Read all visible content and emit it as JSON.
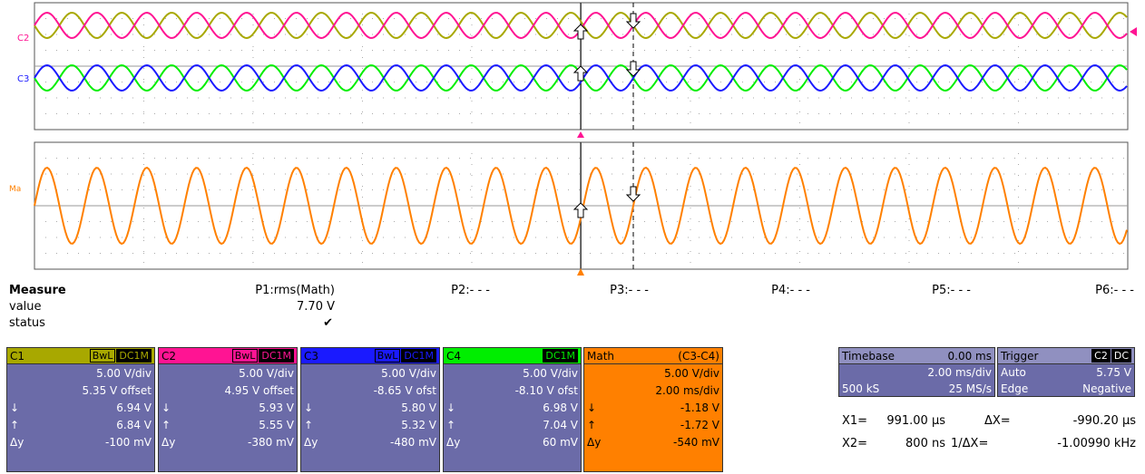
{
  "traces": {
    "upper": [
      "C2",
      "C3"
    ],
    "lower": "Ma"
  },
  "measure": {
    "title": "Measure",
    "row_labels": [
      "value",
      "status"
    ],
    "params": [
      "P1:rms(Math)",
      "P2:- - -",
      "P3:- - -",
      "P4:- - -",
      "P5:- - -",
      "P6:- - -"
    ],
    "p1_value": "7.70 V",
    "p1_status": "✔"
  },
  "channels": [
    {
      "name": "C1",
      "color": "#a8a800",
      "tags": [
        "BwL",
        "DC1M"
      ],
      "lines": [
        "5.00 V/div",
        "5.35 V offset"
      ],
      "rows": [
        [
          "↓",
          "6.94 V"
        ],
        [
          "↑",
          "6.84 V"
        ],
        [
          "Δy",
          "-100 mV"
        ]
      ]
    },
    {
      "name": "C2",
      "color": "#ff1493",
      "tags": [
        "BwL",
        "DC1M"
      ],
      "lines": [
        "5.00 V/div",
        "4.95 V offset"
      ],
      "rows": [
        [
          "↓",
          "5.93 V"
        ],
        [
          "↑",
          "5.55 V"
        ],
        [
          "Δy",
          "-380 mV"
        ]
      ]
    },
    {
      "name": "C3",
      "color": "#1a1aff",
      "tags": [
        "BwL",
        "DC1M"
      ],
      "lines": [
        "5.00 V/div",
        "-8.65 V ofst"
      ],
      "rows": [
        [
          "↓",
          "5.80 V"
        ],
        [
          "↑",
          "5.32 V"
        ],
        [
          "Δy",
          "-480 mV"
        ]
      ]
    },
    {
      "name": "C4",
      "color": "#00ee00",
      "tags": [
        "DC1M"
      ],
      "lines": [
        "5.00 V/div",
        "-8.10 V ofst"
      ],
      "rows": [
        [
          "↓",
          "6.98 V"
        ],
        [
          "↑",
          "7.04 V"
        ],
        [
          "Δy",
          "60 mV"
        ]
      ]
    }
  ],
  "math": {
    "name": "Math",
    "color": "#ff8000",
    "expr": "(C3-C4)",
    "lines": [
      "5.00 V/div",
      "2.00 ms/div"
    ],
    "rows": [
      [
        "↓",
        "-1.18 V"
      ],
      [
        "↑",
        "-1.72 V"
      ],
      [
        "Δy",
        "-540 mV"
      ]
    ]
  },
  "timebase": {
    "title": "Timebase",
    "delay": "0.00 ms",
    "tdiv": "2.00 ms/div",
    "samples": "500 kS",
    "rate": "25 MS/s"
  },
  "trigger": {
    "title": "Trigger",
    "tags": [
      "C2",
      "DC"
    ],
    "mode": "Auto",
    "level": "5.75 V",
    "type": "Edge",
    "slope": "Negative"
  },
  "cursors": {
    "x1_label": "X1=",
    "x1": "991.00 µs",
    "dx_label": "ΔX=",
    "dx": "-990.20 µs",
    "x2_label": "X2=",
    "x2": "800 ns",
    "inv_label": "1/ΔX=",
    "inv": "-1.00990 kHz"
  }
}
